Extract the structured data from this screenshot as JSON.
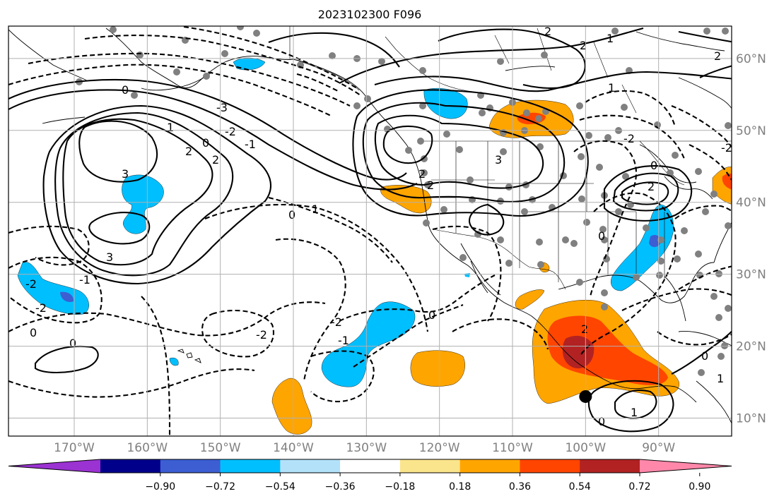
{
  "title": "2023102300 F096",
  "map": {
    "projection": "plate-carree",
    "extent": {
      "lon_min": -179,
      "lon_max": -80,
      "lat_min": 7.5,
      "lat_max": 64.5
    },
    "grid": true,
    "lat_ticks": [
      {
        "value": 10,
        "label": "10°N"
      },
      {
        "value": 20,
        "label": "20°N"
      },
      {
        "value": 30,
        "label": "30°N"
      },
      {
        "value": 40,
        "label": "40°N"
      },
      {
        "value": 50,
        "label": "50°N"
      },
      {
        "value": 60,
        "label": "60°N"
      }
    ],
    "lon_ticks": [
      {
        "value": -170,
        "label": "170°W"
      },
      {
        "value": -160,
        "label": "160°W"
      },
      {
        "value": -150,
        "label": "150°W"
      },
      {
        "value": -140,
        "label": "140°W"
      },
      {
        "value": -130,
        "label": "130°W"
      },
      {
        "value": -120,
        "label": "120°W"
      },
      {
        "value": -110,
        "label": "110°W"
      },
      {
        "value": -100,
        "label": "100°W"
      },
      {
        "value": -90,
        "label": "90°W"
      }
    ],
    "contour_labels": [
      "0",
      "1",
      "2",
      "3",
      "-1",
      "-2",
      "-3"
    ],
    "tropical_marker": {
      "lon": -100,
      "lat": 13
    }
  },
  "colorbar": {
    "colors": [
      "#9b32d2",
      "#00008b",
      "#3c5ed2",
      "#00bfff",
      "#b3e1fa",
      "#ffffff",
      "#fbe58c",
      "#ffa500",
      "#ff4500",
      "#b22222",
      "#ff88aa"
    ],
    "tick_labels": [
      "−0.90",
      "−0.72",
      "−0.54",
      "−0.36",
      "−0.18",
      "0.18",
      "0.36",
      "0.54",
      "0.72",
      "0.90"
    ],
    "extend": "both"
  },
  "colors": {
    "lightblue": "#b3e1fa",
    "blue": "#00bfff",
    "mid_blue": "#3c5ed2",
    "orange": "#ffa500",
    "red_orange": "#ff4500",
    "dark_red": "#b22222",
    "station": "#808080"
  }
}
